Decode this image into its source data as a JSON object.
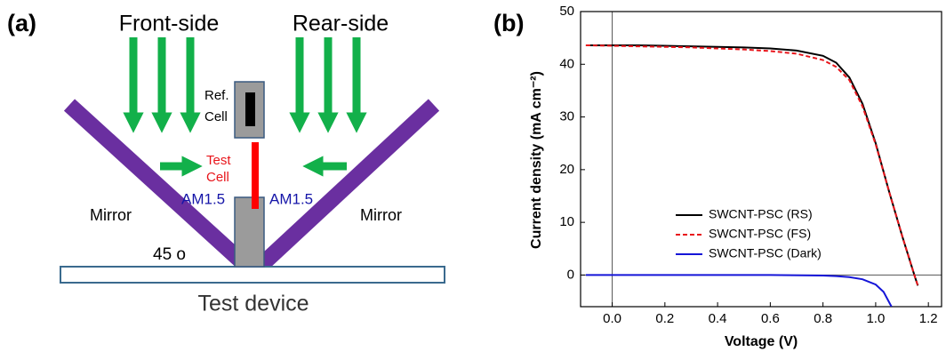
{
  "panel_labels": [
    "(a)",
    "(b)"
  ],
  "diagram": {
    "front": "Front-side",
    "rear": "Rear-side",
    "ref_cell": [
      "Ref.",
      "Cell"
    ],
    "test_cell": [
      "Test",
      "Cell"
    ],
    "am_left": "AM1.5",
    "am_right": "AM1.5",
    "mirror_left": "Mirror",
    "mirror_right": "Mirror",
    "angle": "45 o",
    "device": "Test device"
  },
  "chart_data": {
    "type": "line",
    "x_label": "Voltage (V)",
    "y_label": "Current density (mA cm⁻²)",
    "xlim": [
      -0.12,
      1.25
    ],
    "ylim": [
      -6,
      50
    ],
    "xticks": [
      {
        "value": 0,
        "label": "0.0"
      },
      0.2,
      0.4,
      0.6,
      0.8,
      {
        "value": 1,
        "label": "1.0"
      },
      1.2
    ],
    "yticks": [
      0,
      10,
      20,
      30,
      40,
      50
    ],
    "zero_lines": true,
    "series": [
      {
        "name": "SWCNT-PSC (RS)",
        "color": "#000000",
        "dash": false,
        "x": [
          -0.1,
          0,
          0.1,
          0.2,
          0.3,
          0.4,
          0.5,
          0.6,
          0.7,
          0.8,
          0.85,
          0.9,
          0.95,
          1.0,
          1.05,
          1.1,
          1.15,
          1.16
        ],
        "values": [
          43.6,
          43.6,
          43.6,
          43.5,
          43.4,
          43.3,
          43.2,
          43.0,
          42.6,
          41.6,
          40.3,
          37.5,
          32.5,
          25,
          16,
          7.5,
          -0.5,
          -2
        ]
      },
      {
        "name": "SWCNT-PSC (FS)",
        "color": "#e8151b",
        "dash": true,
        "x": [
          -0.1,
          0,
          0.1,
          0.2,
          0.3,
          0.4,
          0.5,
          0.6,
          0.7,
          0.8,
          0.85,
          0.9,
          0.95,
          1.0,
          1.05,
          1.1,
          1.15,
          1.16
        ],
        "values": [
          43.6,
          43.5,
          43.4,
          43.3,
          43.2,
          43.0,
          42.8,
          42.5,
          42.0,
          40.8,
          39.5,
          37,
          32,
          24.8,
          16,
          7.5,
          -0.5,
          -2
        ]
      },
      {
        "name": "SWCNT-PSC (Dark)",
        "color": "#1515d8",
        "dash": false,
        "x": [
          -0.1,
          0,
          0.2,
          0.4,
          0.6,
          0.8,
          0.85,
          0.9,
          0.95,
          1.0,
          1.03,
          1.06
        ],
        "values": [
          0,
          0,
          0,
          0,
          0,
          -0.1,
          -0.2,
          -0.4,
          -0.8,
          -1.8,
          -3.2,
          -6
        ]
      }
    ]
  }
}
